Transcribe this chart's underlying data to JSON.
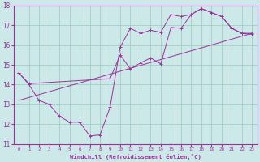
{
  "bg_color": "#cce8e8",
  "line_color": "#993399",
  "grid_color": "#99ccbb",
  "xlabel": "Windchill (Refroidissement éolien,°C)",
  "xlim": [
    -0.5,
    23.5
  ],
  "ylim": [
    11,
    18
  ],
  "yticks": [
    11,
    12,
    13,
    14,
    15,
    16,
    17,
    18
  ],
  "xticks": [
    0,
    1,
    2,
    3,
    4,
    5,
    6,
    7,
    8,
    9,
    10,
    11,
    12,
    13,
    14,
    15,
    16,
    17,
    18,
    19,
    20,
    21,
    22,
    23
  ],
  "line1_x": [
    0,
    1,
    2,
    3,
    4,
    5,
    6,
    7,
    8,
    9,
    10,
    11,
    12,
    13,
    14,
    15,
    16,
    17,
    18,
    19,
    20,
    21,
    22,
    23
  ],
  "line1_y": [
    14.6,
    14.0,
    13.2,
    13.0,
    12.4,
    12.1,
    12.1,
    11.4,
    11.45,
    12.85,
    15.9,
    16.85,
    16.6,
    16.75,
    16.65,
    17.55,
    17.45,
    17.55,
    17.85,
    17.65,
    17.45,
    16.85,
    16.6,
    16.6
  ],
  "line2_x": [
    0,
    1,
    9,
    10,
    11,
    12,
    13,
    14,
    15,
    16,
    17,
    18,
    19,
    20,
    21,
    22,
    23
  ],
  "line2_y": [
    14.6,
    14.05,
    14.3,
    15.5,
    14.8,
    15.1,
    15.35,
    15.05,
    16.9,
    16.85,
    17.55,
    17.85,
    17.65,
    17.45,
    16.85,
    16.6,
    16.55
  ],
  "trend_x": [
    0,
    23
  ],
  "trend_y": [
    13.2,
    16.6
  ]
}
